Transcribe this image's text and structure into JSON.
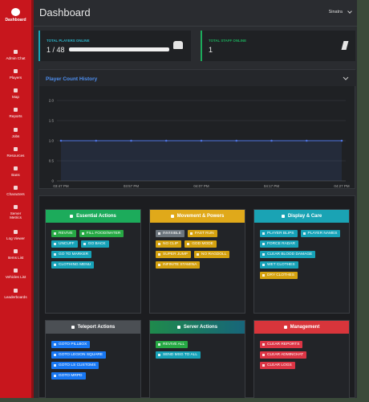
{
  "sidebar": {
    "items": [
      "Dashboard",
      "Admin Chat",
      "Players",
      "Map",
      "Reports",
      "Jobs",
      "Resources",
      "Bans",
      "Characters",
      "Server Metrics",
      "Log Viewer",
      "Items List",
      "Vehicles List",
      "Leaderboards"
    ]
  },
  "header": {
    "title": "Dashboard",
    "user": "Sinatra"
  },
  "stats": [
    {
      "label": "TOTAL PLAYERS ONLINE",
      "value": "1 / 48"
    },
    {
      "label": "TOTAL STAFF ONLINE",
      "value": "1"
    }
  ],
  "chart_data": {
    "type": "line",
    "title": "Player Count History",
    "categories": [
      "03:47 PM",
      null,
      "03:57 PM",
      null,
      "04:07 PM",
      null,
      "04:17 PM",
      null,
      "04:27 PM"
    ],
    "series": [
      {
        "color": "#4e73df",
        "values": [
          1,
          1,
          1,
          1,
          1,
          1,
          1,
          1,
          1
        ]
      }
    ],
    "ylim": [
      0,
      2
    ],
    "yticks": [
      0,
      0.5,
      {
        "value": 1,
        "label": "1.0"
      },
      1.5,
      {
        "value": 2,
        "label": "2.0"
      }
    ],
    "grid": true
  },
  "panels": [
    {
      "title": "Essential Actions",
      "buttons": [
        "REVIVE",
        "FILL FOOD/WATER",
        "UNCUFF",
        "GO BACK",
        "GO TO MARKER",
        "CLOTHING MENU"
      ]
    },
    {
      "title": "Movement & Powers",
      "buttons": [
        "INVISIBLE",
        "FAST RUN",
        "NO CLIP",
        "GOD MODE",
        "SUPER JUMP",
        "NO RAGDOLL",
        "INFINITE STAMINA"
      ]
    },
    {
      "title": "Display & Care",
      "buttons": [
        "PLAYER BLIPS",
        "PLAYER NAMES",
        "FORCE RADAR",
        "CLEAR BLOOD DAMAGE",
        "WET CLOTHES",
        "DRY CLOTHES"
      ]
    },
    {
      "title": "Teleport Actions",
      "buttons": [
        "GOTO PILLBOX",
        "GOTO LEGION SQUARE",
        "GOTO LS CUSTOMS",
        "GOTO MRPD"
      ]
    },
    {
      "title": "Server Actions",
      "buttons": [
        "REVIVE ALL",
        "SEND MSG TO ALL"
      ]
    },
    {
      "title": "Management",
      "buttons": [
        "CLEAR REPORTS",
        "CLEAR ADMINCHAT",
        "CLEAR LOGS"
      ]
    }
  ]
}
